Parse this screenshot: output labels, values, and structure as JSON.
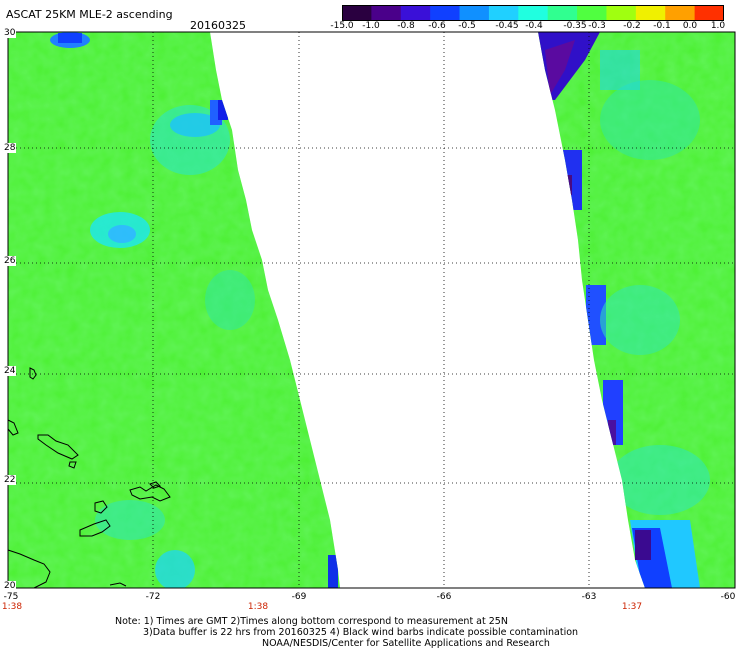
{
  "title": "ASCAT 25KM MLE-2 ascending",
  "date": "20160325",
  "colorbar": {
    "labels": [
      "-15.0",
      "-1.0",
      "-0.8",
      "-0.6",
      "-0.5",
      "-0.45",
      "-0.4",
      "-0.35",
      "-0.3",
      "-0.2",
      "-0.1",
      "0.0",
      "1.0"
    ],
    "colors": [
      "#2a0040",
      "#4a008a",
      "#3a10d8",
      "#1040ff",
      "#1090ff",
      "#20d0ff",
      "#20ffe0",
      "#30ff90",
      "#50ff40",
      "#a0ff10",
      "#f0f000",
      "#ffa000",
      "#ff3000"
    ]
  },
  "axes": {
    "lat_labels": [
      "30",
      "28",
      "26",
      "24",
      "22",
      "20"
    ],
    "lon_labels": [
      "-75",
      "-72",
      "-69",
      "-66",
      "-63",
      "-60"
    ]
  },
  "times": [
    "1:38",
    "1:38",
    "1:37"
  ],
  "notes": [
    "Note: 1) Times are GMT 2)Times along bottom correspond to measurement at 25N",
    "3)Data buffer is 22 hrs from 20160325 4) Black wind barbs indicate possible contamination",
    "NOAA/NESDIS/Center for Satellite Applications and Research"
  ]
}
